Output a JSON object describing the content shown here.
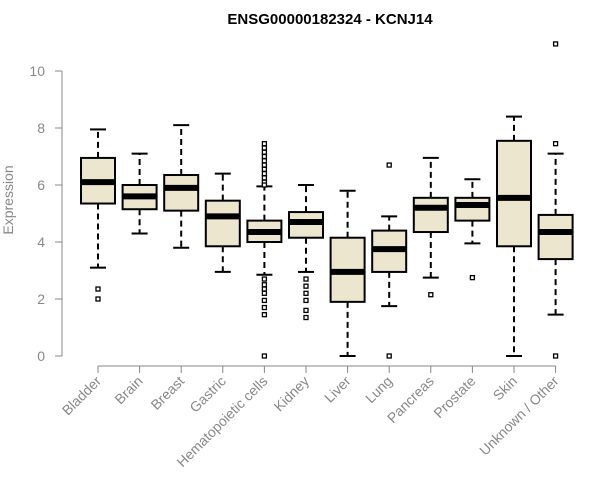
{
  "chart_data": {
    "type": "box",
    "title": "ENSG00000182324 - KCNJ14",
    "xlabel": "",
    "ylabel": "Expression",
    "ylim": [
      0,
      10
    ],
    "yticks": [
      "0",
      "2",
      "4",
      "6",
      "8",
      "10"
    ],
    "grid": false,
    "colors": {
      "box_fill": "#ede6cf",
      "box_stroke": "#000000",
      "axis": "#888888",
      "text": "#888888"
    },
    "categories": [
      "Bladder",
      "Brain",
      "Breast",
      "Gastric",
      "Hematopoietic cells",
      "Kidney",
      "Liver",
      "Lung",
      "Pancreas",
      "Prostate",
      "Skin",
      "Unknown / Other"
    ],
    "boxes": [
      {
        "category": "Bladder",
        "whisker_low": 3.1,
        "q1": 5.35,
        "median": 6.1,
        "q3": 6.95,
        "whisker_high": 7.95,
        "outliers": [
          2.35,
          2.0
        ]
      },
      {
        "category": "Brain",
        "whisker_low": 4.3,
        "q1": 5.15,
        "median": 5.6,
        "q3": 6.0,
        "whisker_high": 7.1,
        "outliers": []
      },
      {
        "category": "Breast",
        "whisker_low": 3.8,
        "q1": 5.1,
        "median": 5.9,
        "q3": 6.35,
        "whisker_high": 8.1,
        "outliers": []
      },
      {
        "category": "Gastric",
        "whisker_low": 2.95,
        "q1": 3.85,
        "median": 4.9,
        "q3": 5.45,
        "whisker_high": 6.4,
        "outliers": []
      },
      {
        "category": "Hematopoietic cells",
        "whisker_low": 2.85,
        "q1": 4.0,
        "median": 4.35,
        "q3": 4.75,
        "whisker_high": 5.95,
        "outliers": [
          7.45,
          7.3,
          7.15,
          7.0,
          6.85,
          6.7,
          6.55,
          6.4,
          6.25,
          6.1,
          6.0,
          2.7,
          2.5,
          2.35,
          2.2,
          1.95,
          1.7,
          1.45,
          0.0
        ]
      },
      {
        "category": "Kidney",
        "whisker_low": 2.95,
        "q1": 4.15,
        "median": 4.7,
        "q3": 5.05,
        "whisker_high": 6.0,
        "outliers": [
          2.7,
          2.45,
          2.2,
          1.95,
          1.6,
          1.35
        ]
      },
      {
        "category": "Liver",
        "whisker_low": 0.0,
        "q1": 1.9,
        "median": 2.95,
        "q3": 4.15,
        "whisker_high": 5.8,
        "outliers": []
      },
      {
        "category": "Lung",
        "whisker_low": 1.75,
        "q1": 2.95,
        "median": 3.75,
        "q3": 4.4,
        "whisker_high": 4.9,
        "outliers": [
          6.7,
          0.0
        ]
      },
      {
        "category": "Pancreas",
        "whisker_low": 2.75,
        "q1": 4.35,
        "median": 5.2,
        "q3": 5.55,
        "whisker_high": 6.95,
        "outliers": [
          2.15
        ]
      },
      {
        "category": "Prostate",
        "whisker_low": 3.95,
        "q1": 4.75,
        "median": 5.3,
        "q3": 5.55,
        "whisker_high": 6.2,
        "outliers": [
          2.75
        ]
      },
      {
        "category": "Skin",
        "whisker_low": 0.0,
        "q1": 3.85,
        "median": 5.55,
        "q3": 7.55,
        "whisker_high": 8.4,
        "outliers": []
      },
      {
        "category": "Unknown / Other",
        "whisker_low": 1.45,
        "q1": 3.4,
        "median": 4.35,
        "q3": 4.95,
        "whisker_high": 7.1,
        "outliers": [
          10.95,
          7.45,
          0.0
        ]
      }
    ]
  }
}
